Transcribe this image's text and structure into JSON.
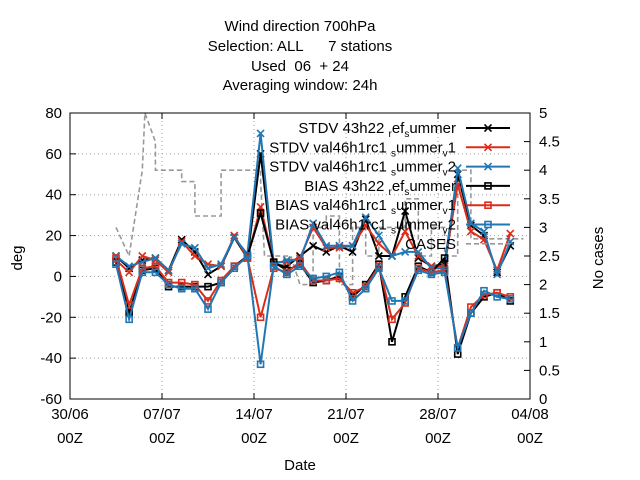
{
  "title_lines": [
    "Wind direction 700hPa",
    "Selection: ALL      7 stations",
    "Used  06  + 24",
    "Averaging window: 24h"
  ],
  "chart_data": {
    "type": "line",
    "title": "Wind direction 700hPa",
    "xlabel": "Date",
    "ylabel": "deg",
    "y2label": "No cases",
    "grid": true,
    "legend_position": "top-right",
    "ylim": [
      -60,
      80
    ],
    "y2lim": [
      0,
      5
    ],
    "xlim_days": [
      0,
      35
    ],
    "x_ticks": [
      {
        "day": 0,
        "l1": "30/06",
        "l2": "00Z"
      },
      {
        "day": 7,
        "l1": "07/07",
        "l2": "00Z"
      },
      {
        "day": 14,
        "l1": "14/07",
        "l2": "00Z"
      },
      {
        "day": 21,
        "l1": "21/07",
        "l2": "00Z"
      },
      {
        "day": 28,
        "l1": "28/07",
        "l2": "00Z"
      },
      {
        "day": 35,
        "l1": "04/08",
        "l2": "00Z"
      }
    ],
    "y_ticks": [
      -60,
      -40,
      -20,
      0,
      20,
      40,
      60,
      80
    ],
    "y2_ticks": [
      0,
      0.5,
      1,
      1.5,
      2,
      2.5,
      3,
      3.5,
      4,
      4.5,
      5
    ],
    "x": [
      3.5,
      4.5,
      5.5,
      6.5,
      7.5,
      8.5,
      9.5,
      10.5,
      11.5,
      12.5,
      13.5,
      14.5,
      15.5,
      16.5,
      17.5,
      18.5,
      19.5,
      20.5,
      21.5,
      22.5,
      23.5,
      24.5,
      25.5,
      26.5,
      27.5,
      28.5,
      29.5,
      30.5,
      31.5,
      32.5,
      33.5
    ],
    "series": [
      {
        "name": "STDV 43h22_ref_summer",
        "legend": {
          "main": "STDV 43h22",
          "parts": [
            [
              "sub",
              "r"
            ],
            [
              "n",
              "ef"
            ],
            [
              "sub",
              "s"
            ],
            [
              "n",
              "ummer"
            ]
          ]
        },
        "color": "#000000",
        "marker": "x",
        "values": [
          10,
          4,
          8,
          9,
          3,
          18,
          12,
          1,
          5,
          19,
          9,
          60,
          6,
          5,
          10,
          15,
          12,
          15,
          12,
          28,
          10,
          10,
          32,
          9,
          5,
          6,
          50,
          25,
          20,
          2,
          15
        ]
      },
      {
        "name": "STDV val46h1rc1_summer_v1",
        "legend": {
          "main": "STDV val46h1rc1",
          "parts": [
            [
              "sub",
              "s"
            ],
            [
              "n",
              "ummer"
            ],
            [
              "sub",
              "v"
            ],
            [
              "n",
              "1"
            ]
          ]
        },
        "color": "#dd2d1a",
        "marker": "x",
        "values": [
          8,
          2,
          10,
          8,
          2,
          17,
          10,
          6,
          5,
          20,
          9,
          34,
          7,
          7,
          9,
          24,
          14,
          14,
          15,
          25,
          16,
          10,
          22,
          10,
          5,
          5,
          45,
          22,
          18,
          3,
          21
        ]
      },
      {
        "name": "STDV val46h1rc1_summer_v2",
        "legend": {
          "main": "STDV val46h1rc1",
          "parts": [
            [
              "sub",
              "s"
            ],
            [
              "n",
              "ummer"
            ],
            [
              "sub",
              "v"
            ],
            [
              "n",
              "2"
            ]
          ]
        },
        "color": "#1f77b4",
        "marker": "x",
        "values": [
          10,
          5,
          7,
          9,
          3,
          16,
          14,
          4,
          6,
          19,
          11,
          70,
          6,
          8,
          8,
          26,
          15,
          15,
          15,
          29,
          20,
          10,
          12,
          12,
          4,
          4,
          53,
          26,
          22,
          1,
          17
        ]
      },
      {
        "name": "BIAS 43h22_ref_summer",
        "legend": {
          "main": "BIAS 43h22",
          "parts": [
            [
              "sub",
              "r"
            ],
            [
              "n",
              "ef"
            ],
            [
              "sub",
              "s"
            ],
            [
              "n",
              "ummer"
            ]
          ]
        },
        "color": "#000000",
        "marker": "box",
        "values": [
          7,
          -18,
          3,
          4,
          -5,
          -5,
          -5,
          -5,
          -3,
          5,
          10,
          31,
          7,
          3,
          6,
          -3,
          -2,
          0,
          -10,
          -4,
          6,
          -32,
          -10,
          5,
          2,
          9,
          -38,
          -18,
          -10,
          -8,
          -12
        ]
      },
      {
        "name": "BIAS val46h1rc1_summer_v1",
        "legend": {
          "main": "BIAS val46h1rc1",
          "parts": [
            [
              "sub",
              "s"
            ],
            [
              "n",
              "ummer"
            ],
            [
              "sub",
              "v"
            ],
            [
              "n",
              "1"
            ]
          ]
        },
        "color": "#dd2d1a",
        "marker": "box",
        "values": [
          9,
          -14,
          4,
          5,
          -3,
          -3,
          -4,
          -12,
          -2,
          5,
          9,
          -20,
          4,
          2,
          7,
          -2,
          -2,
          -1,
          -8,
          -5,
          5,
          -21,
          -13,
          4,
          2,
          3,
          -35,
          -15,
          -9,
          -8,
          -10
        ]
      },
      {
        "name": "BIAS val46h1rc1_summer_v2",
        "legend": {
          "main": "BIAS val46h1rc1",
          "parts": [
            [
              "sub",
              "s"
            ],
            [
              "n",
              "ummer"
            ],
            [
              "sub",
              "v"
            ],
            [
              "n",
              "2"
            ]
          ]
        },
        "color": "#1f77b4",
        "marker": "box",
        "values": [
          6,
          -21,
          2,
          2,
          -4,
          -6,
          -6,
          -16,
          -3,
          4,
          10,
          -43,
          5,
          1,
          5,
          -1,
          0,
          2,
          -12,
          -6,
          4,
          -12,
          -12,
          3,
          1,
          2,
          -35,
          -18,
          -7,
          -10,
          -11
        ]
      }
    ],
    "cases": {
      "name": "CASES",
      "color": "#999999",
      "points": [
        [
          3.5,
          3
        ],
        [
          4.5,
          2.5
        ],
        [
          5.5,
          4
        ],
        [
          5.7,
          5
        ],
        [
          6.5,
          4.5
        ],
        [
          6.5,
          4
        ],
        [
          7.5,
          4
        ],
        [
          8.5,
          4
        ],
        [
          8.5,
          3.8
        ],
        [
          9.5,
          3.8
        ],
        [
          9.5,
          3.2
        ],
        [
          10.5,
          3.2
        ],
        [
          11.5,
          3.2
        ],
        [
          11.5,
          4
        ],
        [
          12.5,
          4
        ],
        [
          13.5,
          4
        ],
        [
          14.5,
          4
        ],
        [
          14.5,
          3.8
        ],
        [
          14.8,
          2.5
        ],
        [
          15.5,
          2.5
        ],
        [
          16.5,
          2.5
        ],
        [
          16.8,
          2.5
        ],
        [
          17.5,
          2
        ],
        [
          18.5,
          2
        ],
        [
          18.5,
          3
        ],
        [
          19.5,
          3
        ],
        [
          19.5,
          3.2
        ],
        [
          20.5,
          3.2
        ],
        [
          20.5,
          2
        ],
        [
          21.5,
          2
        ],
        [
          21.5,
          3
        ],
        [
          22.5,
          3
        ],
        [
          22.5,
          2.5
        ],
        [
          23.5,
          2.5
        ],
        [
          23.5,
          3
        ],
        [
          24.5,
          3
        ],
        [
          25.5,
          3
        ],
        [
          25.5,
          3.5
        ],
        [
          26.5,
          3.5
        ],
        [
          26.5,
          2.5
        ],
        [
          27.5,
          2.5
        ],
        [
          27.5,
          3
        ],
        [
          28.5,
          3
        ],
        [
          28.5,
          2.5
        ],
        [
          29.5,
          2.5
        ],
        [
          29.5,
          4
        ],
        [
          30.5,
          4
        ],
        [
          30.5,
          2.8
        ],
        [
          31.5,
          2.8
        ],
        [
          32.5,
          2.8
        ],
        [
          33.5,
          2.8
        ],
        [
          34.5,
          2.8
        ]
      ]
    }
  }
}
